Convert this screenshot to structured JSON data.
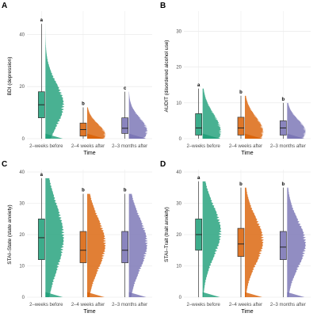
{
  "chart_data": [
    {
      "panel_label": "A",
      "type": "raincloud",
      "xlabel": "Time",
      "ylabel": "BDI (depression)",
      "ylim": [
        0,
        48
      ],
      "yticks": [
        0,
        20,
        40
      ],
      "grid": true,
      "categories": [
        "2–weeks before",
        "2–4 weeks after",
        "2–3 months after"
      ],
      "colors": [
        "#1b9e77",
        "#d95f02",
        "#7570b3"
      ],
      "boxes": [
        {
          "min": 0,
          "q1": 8,
          "median": 13,
          "q3": 18,
          "max": 44
        },
        {
          "min": 0,
          "q1": 1,
          "median": 3.5,
          "q3": 6,
          "max": 12
        },
        {
          "min": 0,
          "q1": 2,
          "median": 4,
          "q3": 8,
          "max": 18
        }
      ],
      "density_peaks": [
        13,
        1.5,
        3
      ],
      "letters": [
        "a",
        "b",
        "c"
      ]
    },
    {
      "panel_label": "B",
      "type": "raincloud",
      "xlabel": "Time",
      "ylabel": "AUDIT (disordered alcohol use)",
      "ylim": [
        0,
        35
      ],
      "yticks": [
        0,
        10,
        20,
        30
      ],
      "grid": true,
      "categories": [
        "2–weeks before",
        "2–4 weeks after",
        "2–3 months after"
      ],
      "colors": [
        "#1b9e77",
        "#d95f02",
        "#7570b3"
      ],
      "boxes": [
        {
          "min": 0,
          "q1": 1,
          "median": 3,
          "q3": 7,
          "max": 14
        },
        {
          "min": 0,
          "q1": 1,
          "median": 3,
          "q3": 6,
          "max": 12
        },
        {
          "min": 0,
          "q1": 1,
          "median": 3,
          "q3": 5,
          "max": 10
        }
      ],
      "density_peaks": [
        2,
        2,
        2
      ],
      "letters": [
        "a",
        "b",
        "b"
      ]
    },
    {
      "panel_label": "C",
      "type": "raincloud",
      "xlabel": "Time",
      "ylabel": "STAI–State (state anxiety)",
      "ylim": [
        0,
        40
      ],
      "yticks": [
        0,
        10,
        20,
        30,
        40
      ],
      "grid": true,
      "categories": [
        "2–weeks before",
        "2–4 weeks after",
        "2–3 months after"
      ],
      "colors": [
        "#1b9e77",
        "#d95f02",
        "#7570b3"
      ],
      "boxes": [
        {
          "min": 0,
          "q1": 12,
          "median": 19,
          "q3": 25,
          "max": 38
        },
        {
          "min": 0,
          "q1": 11,
          "median": 15,
          "q3": 21,
          "max": 33
        },
        {
          "min": 0,
          "q1": 11,
          "median": 15,
          "q3": 21,
          "max": 33
        }
      ],
      "density_peaks": [
        19,
        17,
        17
      ],
      "letters": [
        "a",
        "b",
        "b"
      ]
    },
    {
      "panel_label": "D",
      "type": "raincloud",
      "xlabel": "Time",
      "ylabel": "STAI–Trait (trait anxiety)",
      "ylim": [
        0,
        40
      ],
      "yticks": [
        0,
        10,
        20,
        30,
        40
      ],
      "grid": true,
      "categories": [
        "2–weeks before",
        "2–4 weeks after",
        "2–3 months after"
      ],
      "colors": [
        "#1b9e77",
        "#d95f02",
        "#7570b3"
      ],
      "boxes": [
        {
          "min": 0,
          "q1": 15,
          "median": 20,
          "q3": 25,
          "max": 37
        },
        {
          "min": 0,
          "q1": 13,
          "median": 17,
          "q3": 22,
          "max": 35
        },
        {
          "min": 0,
          "q1": 12,
          "median": 16,
          "q3": 21,
          "max": 35
        }
      ],
      "density_peaks": [
        21,
        18,
        17
      ],
      "letters": [
        "a",
        "b",
        "b"
      ]
    }
  ]
}
